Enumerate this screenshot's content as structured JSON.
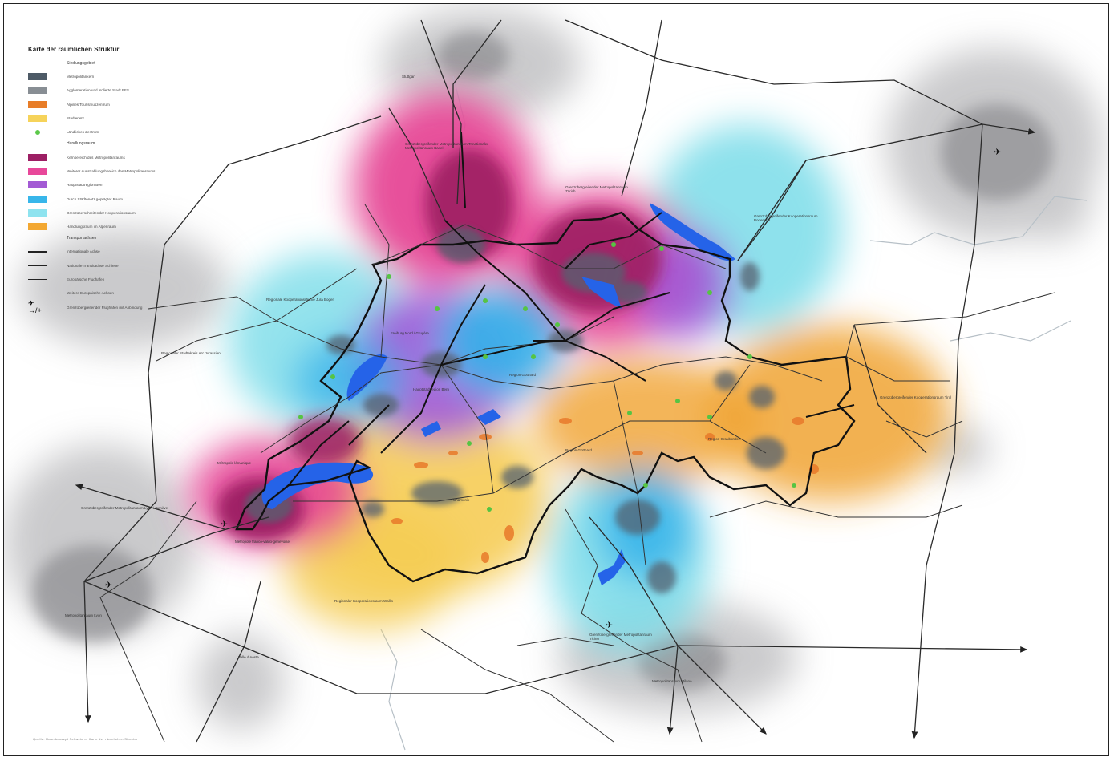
{
  "title": "Karte der räumlichen Struktur",
  "legend": {
    "groups": [
      {
        "heading": "Siedlungsgebiet",
        "items": [
          {
            "label": "Metropolitankern",
            "kind": "box",
            "color": "#4d5a66"
          },
          {
            "label": "Agglomeration und isolierte Stadt BFS",
            "kind": "box",
            "color": "#888e94"
          },
          {
            "label": "Alpines Tourismuszentrum",
            "kind": "box",
            "color": "#e87d28"
          },
          {
            "label": "Städtenetz",
            "kind": "box",
            "color": "#f6d35a"
          },
          {
            "label": "Ländliches Zentrum",
            "kind": "dot",
            "color": "#5cc84a"
          }
        ]
      },
      {
        "heading": "Handlungsraum",
        "items": [
          {
            "label": "Kernbereich des Metropolitanraums",
            "kind": "box",
            "color": "#9c1f64"
          },
          {
            "label": "Weiterer Ausstrahlungsbereich des Metropolitanraums",
            "kind": "box",
            "color": "#e8489a"
          },
          {
            "label": "Hauptstadtregion Bern",
            "kind": "box",
            "color": "#a35ad4"
          },
          {
            "label": "Durch Städtenetz geprägter Raum",
            "kind": "box",
            "color": "#38b6ea"
          },
          {
            "label": "Grenzüberschreitender Kooperationsraum",
            "kind": "box",
            "color": "#8ee3ef"
          },
          {
            "label": "Handlungsraum im Alpenraum",
            "kind": "box",
            "color": "#f3a832"
          }
        ]
      },
      {
        "heading": "Transportachsen",
        "items": [
          {
            "label": "Internationale Achse",
            "kind": "line"
          },
          {
            "label": "Nationale Transitachse Schiene",
            "kind": "line-thin"
          },
          {
            "label": "Europäische Flughafen",
            "kind": "line-thin"
          },
          {
            "label": "Weitere Europäische Achsen",
            "kind": "line-thin"
          },
          {
            "label": "Grenzübergreifender Flughafen mit Anbindung",
            "kind": "arrow"
          }
        ]
      }
    ]
  },
  "labels": {
    "stuttgart": "Stuttgart",
    "basel": "Grenzübergreifender Metropolitanraum Trinationaler Metropolitanraum Basel",
    "zurich": "Grenzübergreifender Metropolitanraum Zürich",
    "bodensee": "Grenzübergreifender Kooperationsraum Bodensee",
    "jura": "Regionale Kooperationsräume Jura Bogen",
    "besancon": "Regionaler Städtekreis Arc Jurassien",
    "bern": "Hauptstadtregion Bern",
    "geneva_north": "Métropole lémanique",
    "lyon_north": "Grenzübergreifender Metropolitanraum Lyon / Genève",
    "geneva_south": "Métropole franco-valdo-genevoise",
    "lyon": "Metropolitanraum Lyon",
    "sion": "Regionaler Kooperationsraum Wallis",
    "gotthard": "Region Gotthard",
    "gotthard2": "Region Gotthard",
    "tirol": "Grenzübergreifender Kooperationsraum Tirol",
    "graubuenden": "Region Graubünden",
    "ticino": "Grenzübergreifender Metropolitanraum Ticino",
    "milano": "Metropolitanraum Milano",
    "valle": "Valle d'Aosta",
    "chamonix": "Chamonix",
    "gruyere": "Freiburg Nord / Gruyère"
  },
  "footer": "Quelle: Raumkonzept Schweiz — Karte der räumlichen Struktur"
}
